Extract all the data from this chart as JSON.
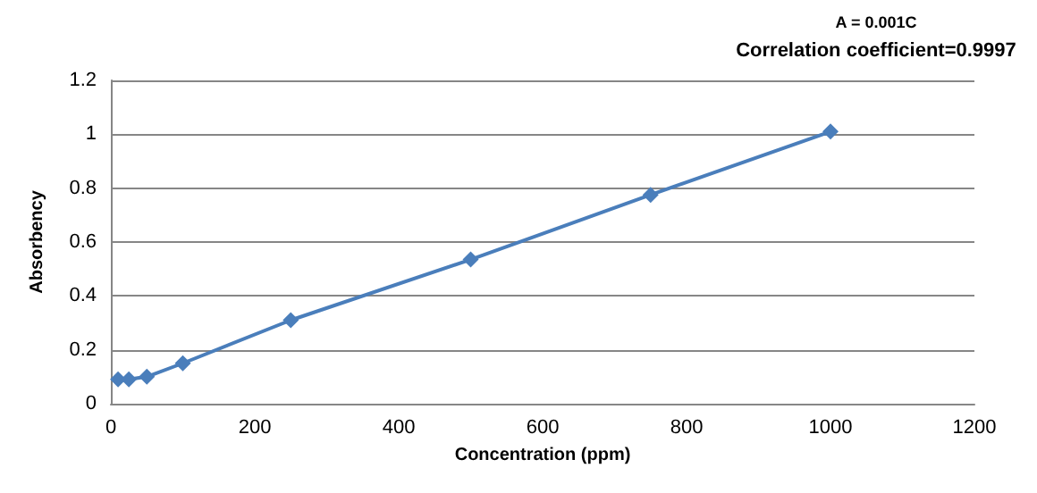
{
  "chart_data": {
    "type": "line",
    "xlabel": "Concentration (ppm)",
    "ylabel": "Absorbency",
    "annotations": [
      "A = 0.001C",
      "Correlation coefficient=0.9997"
    ],
    "series": [
      {
        "color": "#4a7ebb",
        "x": [
          10,
          25,
          50,
          100,
          250,
          500,
          750,
          1000
        ],
        "values": [
          0.09,
          0.09,
          0.1,
          0.15,
          0.31,
          0.535,
          0.775,
          1.01
        ]
      }
    ],
    "xlim": [
      0,
      1200
    ],
    "xticks": [
      0,
      200,
      400,
      600,
      800,
      1000,
      1200
    ],
    "ylim": [
      0,
      1.2
    ],
    "yticks": [
      0,
      0.2,
      0.4,
      0.6,
      0.8,
      1,
      1.2
    ],
    "grid": "y",
    "marker": "diamond",
    "line_style": "solid"
  }
}
